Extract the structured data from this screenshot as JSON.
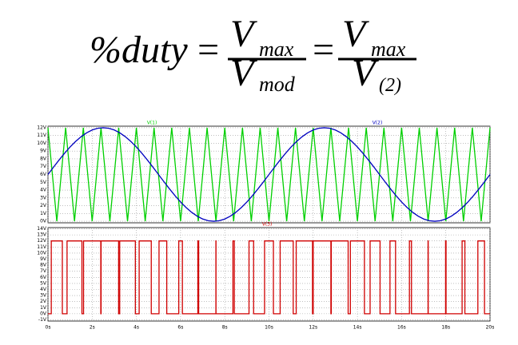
{
  "formula": {
    "lhs": "%duty",
    "eq": "=",
    "fractions": [
      {
        "num": "V",
        "num_sub": "max",
        "den": "V",
        "den_sub": "mod"
      },
      {
        "num": "V",
        "num_sub": "max",
        "den": "V",
        "den_sub": "(2)"
      }
    ]
  },
  "chart_data": [
    {
      "type": "line",
      "xlim": [
        0,
        20
      ],
      "ylim": [
        -0.2,
        12.2
      ],
      "grid": true,
      "yticks": [
        {
          "value": 0,
          "label": "0V"
        },
        {
          "value": 1,
          "label": "1V"
        },
        {
          "value": 2,
          "label": "2V"
        },
        {
          "value": 3,
          "label": "3V"
        },
        {
          "value": 4,
          "label": "4V"
        },
        {
          "value": 5,
          "label": "5V"
        },
        {
          "value": 6,
          "label": "6V"
        },
        {
          "value": 7,
          "label": "7V"
        },
        {
          "value": 8,
          "label": "8V"
        },
        {
          "value": 9,
          "label": "9V"
        },
        {
          "value": 10,
          "label": "10V"
        },
        {
          "value": 11,
          "label": "11V"
        },
        {
          "value": 12,
          "label": "12V"
        }
      ],
      "series": [
        {
          "name": "V(1)",
          "color": "#00d000",
          "x": [
            0,
            0.4,
            0.8,
            1.2,
            1.6,
            2,
            2.4,
            2.8,
            3.2,
            3.6,
            4,
            4.4,
            4.8,
            5.2,
            5.6,
            6,
            6.4,
            6.8,
            7.2,
            7.6,
            8,
            8.4,
            8.8,
            9.2,
            9.6,
            10,
            10.4,
            10.8,
            11.2,
            11.6,
            12,
            12.4,
            12.8,
            13.2,
            13.6,
            14,
            14.4,
            14.8,
            15.2,
            15.6,
            16,
            16.4,
            16.8,
            17.2,
            17.6,
            18,
            18.4,
            18.8,
            19.2,
            19.6,
            20
          ],
          "values": [
            12,
            0,
            12,
            0,
            12,
            0,
            12,
            0,
            12,
            0,
            12,
            0,
            12,
            0,
            12,
            0,
            12,
            0,
            12,
            0,
            12,
            0,
            12,
            0,
            12,
            0,
            12,
            0,
            12,
            0,
            12,
            0,
            12,
            0,
            12,
            0,
            12,
            0,
            12,
            0,
            12,
            0,
            12,
            0,
            12,
            0,
            12,
            0,
            12,
            0,
            12
          ]
        },
        {
          "name": "V(2)",
          "color": "#0000c0",
          "x": [
            0,
            0.25,
            0.5,
            0.75,
            1,
            1.25,
            1.5,
            1.75,
            2,
            2.25,
            2.5,
            2.75,
            3,
            3.25,
            3.5,
            3.75,
            4,
            4.25,
            4.5,
            4.75,
            5,
            5.25,
            5.5,
            5.75,
            6,
            6.25,
            6.5,
            6.75,
            7,
            7.25,
            7.5,
            7.75,
            8,
            8.25,
            8.5,
            8.75,
            9,
            9.25,
            9.5,
            9.75,
            10,
            10.25,
            10.5,
            10.75,
            11,
            11.25,
            11.5,
            11.75,
            12,
            12.25,
            12.5,
            12.75,
            13,
            13.25,
            13.5,
            13.75,
            14,
            14.25,
            14.5,
            14.75,
            15,
            15.25,
            15.5,
            15.75,
            16,
            16.25,
            16.5,
            16.75,
            17,
            17.25,
            17.5,
            17.75,
            18,
            18.25,
            18.5,
            18.75,
            19,
            19.25,
            19.5,
            19.75,
            20
          ],
          "values": [
            6,
            6.94,
            7.85,
            8.72,
            9.53,
            10.24,
            10.85,
            11.35,
            11.71,
            11.93,
            12,
            11.93,
            11.71,
            11.35,
            10.85,
            10.24,
            9.53,
            8.72,
            7.85,
            6.94,
            6,
            5.06,
            4.15,
            3.28,
            2.47,
            1.76,
            1.15,
            0.65,
            0.29,
            0.07,
            0,
            0.07,
            0.29,
            0.65,
            1.15,
            1.76,
            2.47,
            3.28,
            4.15,
            5.06,
            6,
            6.94,
            7.85,
            8.72,
            9.53,
            10.24,
            10.85,
            11.35,
            11.71,
            11.93,
            12,
            11.93,
            11.71,
            11.35,
            10.85,
            10.24,
            9.53,
            8.72,
            7.85,
            6.94,
            6,
            5.06,
            4.15,
            3.28,
            2.47,
            1.76,
            1.15,
            0.65,
            0.29,
            0.07,
            0,
            0.07,
            0.29,
            0.65,
            1.15,
            1.76,
            2.47,
            3.28,
            4.15,
            5.06,
            6
          ]
        }
      ]
    },
    {
      "type": "line",
      "xlim": [
        0,
        20
      ],
      "ylim": [
        -1.2,
        14.2
      ],
      "grid": true,
      "xticks": [
        {
          "value": 0,
          "label": "0s"
        },
        {
          "value": 2,
          "label": "2s"
        },
        {
          "value": 4,
          "label": "4s"
        },
        {
          "value": 6,
          "label": "6s"
        },
        {
          "value": 8,
          "label": "8s"
        },
        {
          "value": 10,
          "label": "10s"
        },
        {
          "value": 12,
          "label": "12s"
        },
        {
          "value": 14,
          "label": "14s"
        },
        {
          "value": 16,
          "label": "16s"
        },
        {
          "value": 18,
          "label": "18s"
        },
        {
          "value": 20,
          "label": "20s"
        }
      ],
      "yticks": [
        {
          "value": -1,
          "label": "-1V"
        },
        {
          "value": 0,
          "label": "0V"
        },
        {
          "value": 1,
          "label": "1V"
        },
        {
          "value": 2,
          "label": "2V"
        },
        {
          "value": 3,
          "label": "3V"
        },
        {
          "value": 4,
          "label": "4V"
        },
        {
          "value": 5,
          "label": "5V"
        },
        {
          "value": 6,
          "label": "6V"
        },
        {
          "value": 7,
          "label": "7V"
        },
        {
          "value": 8,
          "label": "8V"
        },
        {
          "value": 9,
          "label": "9V"
        },
        {
          "value": 10,
          "label": "10V"
        },
        {
          "value": 11,
          "label": "11V"
        },
        {
          "value": 12,
          "label": "12V"
        },
        {
          "value": 13,
          "label": "13V"
        },
        {
          "value": 14,
          "label": "14V"
        }
      ],
      "series": [
        {
          "name": "V(3)",
          "color": "#d00000",
          "x": [
            0,
            0.15,
            0.15,
            0.65,
            0.65,
            0.863,
            0.863,
            1.537,
            1.537,
            1.61,
            1.61,
            2.39,
            2.39,
            2.404,
            2.404,
            3.196,
            3.196,
            3.246,
            3.246,
            3.954,
            3.954,
            4.126,
            4.126,
            4.674,
            4.674,
            5.025,
            5.025,
            5.375,
            5.375,
            5.918,
            5.918,
            6.082,
            6.082,
            6.781,
            6.781,
            6.819,
            6.819,
            7.598,
            7.598,
            7.602,
            7.602,
            8.369,
            8.369,
            8.431,
            8.431,
            9.096,
            9.096,
            9.304,
            9.304,
            9.8,
            9.8,
            10.2,
            10.2,
            10.504,
            10.504,
            11.096,
            11.096,
            11.231,
            11.231,
            11.969,
            11.969,
            12,
            12,
            12.8,
            12.8,
            12.819,
            12.819,
            13.581,
            13.581,
            13.682,
            13.682,
            14.318,
            14.318,
            14.575,
            14.575,
            15.025,
            15.025,
            15.474,
            15.474,
            15.726,
            15.726,
            16.354,
            16.354,
            16.446,
            16.446,
            17.196,
            17.196,
            17.204,
            17.204,
            17.99,
            17.99,
            18.01,
            18.01,
            18.737,
            18.737,
            18.863,
            18.863,
            19.45,
            19.45,
            19.75,
            19.75,
            20
          ],
          "values": [
            0,
            0,
            12,
            12,
            0,
            0,
            12,
            12,
            0,
            0,
            12,
            12,
            0,
            0,
            12,
            12,
            0,
            0,
            12,
            12,
            0,
            0,
            12,
            12,
            0,
            0,
            12,
            12,
            0,
            0,
            12,
            12,
            0,
            0,
            12,
            12,
            0,
            0,
            12,
            12,
            0,
            0,
            12,
            12,
            0,
            0,
            12,
            12,
            0,
            0,
            12,
            12,
            0,
            0,
            12,
            12,
            0,
            0,
            12,
            12,
            0,
            0,
            12,
            12,
            0,
            0,
            12,
            12,
            0,
            0,
            12,
            12,
            0,
            0,
            12,
            12,
            0,
            0,
            12,
            12,
            0,
            0,
            12,
            12,
            0,
            0,
            12,
            12,
            0,
            0,
            12,
            12,
            0,
            0,
            12,
            12,
            0,
            0,
            12,
            12,
            0,
            0
          ]
        }
      ]
    }
  ]
}
